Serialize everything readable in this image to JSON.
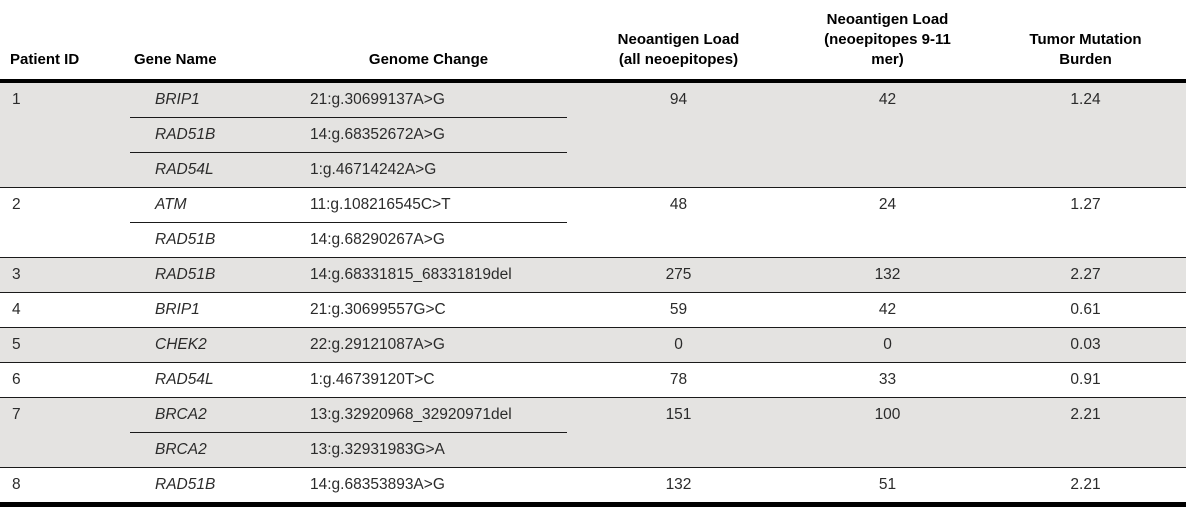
{
  "table": {
    "columns": [
      {
        "label": "Patient ID"
      },
      {
        "label": "Gene Name"
      },
      {
        "label": "Genome Change"
      },
      {
        "label": "Neoantigen Load\n(all neoepitopes)"
      },
      {
        "label": "Neoantigen Load\n(neoepitopes 9-11\nmer)"
      },
      {
        "label": "Tumor Mutation\nBurden"
      }
    ],
    "patients": [
      {
        "patient_id": "1",
        "mutations": [
          {
            "gene": "BRIP1",
            "genome_change": "21:g.30699137A>G"
          },
          {
            "gene": "RAD51B",
            "genome_change": "14:g.68352672A>G"
          },
          {
            "gene": "RAD54L",
            "genome_change": "1:g.46714242A>G"
          }
        ],
        "neoantigen_load_all": "94",
        "neoantigen_load_9_11": "42",
        "tumor_mutation_burden": "1.24",
        "shaded": true
      },
      {
        "patient_id": "2",
        "mutations": [
          {
            "gene": "ATM",
            "genome_change": "11:g.108216545C>T"
          },
          {
            "gene": "RAD51B",
            "genome_change": "14:g.68290267A>G"
          }
        ],
        "neoantigen_load_all": "48",
        "neoantigen_load_9_11": "24",
        "tumor_mutation_burden": "1.27",
        "shaded": false
      },
      {
        "patient_id": "3",
        "mutations": [
          {
            "gene": "RAD51B",
            "genome_change": "14:g.68331815_68331819del"
          }
        ],
        "neoantigen_load_all": "275",
        "neoantigen_load_9_11": "132",
        "tumor_mutation_burden": "2.27",
        "shaded": true
      },
      {
        "patient_id": "4",
        "mutations": [
          {
            "gene": "BRIP1",
            "genome_change": "21:g.30699557G>C"
          }
        ],
        "neoantigen_load_all": "59",
        "neoantigen_load_9_11": "42",
        "tumor_mutation_burden": "0.61",
        "shaded": false
      },
      {
        "patient_id": "5",
        "mutations": [
          {
            "gene": "CHEK2",
            "genome_change": "22:g.29121087A>G"
          }
        ],
        "neoantigen_load_all": "0",
        "neoantigen_load_9_11": "0",
        "tumor_mutation_burden": "0.03",
        "shaded": true
      },
      {
        "patient_id": "6",
        "mutations": [
          {
            "gene": "RAD54L",
            "genome_change": "1:g.46739120T>C"
          }
        ],
        "neoantigen_load_all": "78",
        "neoantigen_load_9_11": "33",
        "tumor_mutation_burden": "0.91",
        "shaded": false
      },
      {
        "patient_id": "7",
        "mutations": [
          {
            "gene": "BRCA2",
            "genome_change": "13:g.32920968_32920971del"
          },
          {
            "gene": "BRCA2",
            "genome_change": "13:g.32931983G>A"
          }
        ],
        "neoantigen_load_all": "151",
        "neoantigen_load_9_11": "100",
        "tumor_mutation_burden": "2.21",
        "shaded": true
      },
      {
        "patient_id": "8",
        "mutations": [
          {
            "gene": "RAD51B",
            "genome_change": "14:g.68353893A>G"
          }
        ],
        "neoantigen_load_all": "132",
        "neoantigen_load_9_11": "51",
        "tumor_mutation_burden": "2.21",
        "shaded": false
      }
    ]
  },
  "colors": {
    "row_shade": "#e4e3e1",
    "rule": "#000000",
    "text": "#2b2b2b"
  }
}
